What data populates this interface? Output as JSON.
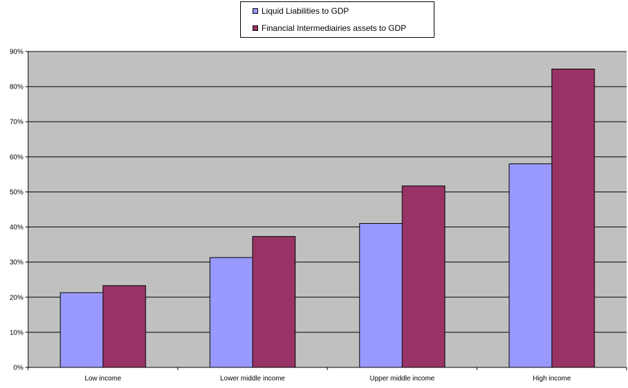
{
  "chart_data": {
    "type": "bar",
    "categories": [
      "Low income",
      "Lower middle income",
      "Upper middle income",
      "High income"
    ],
    "series": [
      {
        "name": "Liquid Liabilities to GDP",
        "color": "#9999ff",
        "values": [
          0.213,
          0.313,
          0.41,
          0.58
        ]
      },
      {
        "name": "Financial Intermediairies assets to GDP",
        "color": "#993366",
        "values": [
          0.233,
          0.373,
          0.517,
          0.85
        ]
      }
    ],
    "ylim": [
      0,
      0.9
    ],
    "yticks": [
      {
        "value": 0,
        "label": "0%"
      },
      {
        "value": 0.1,
        "label": "10%"
      },
      {
        "value": 0.2,
        "label": "20%"
      },
      {
        "value": 0.3,
        "label": "30%"
      },
      {
        "value": 0.4,
        "label": "40%"
      },
      {
        "value": 0.5,
        "label": "50%"
      },
      {
        "value": 0.6,
        "label": "60%"
      },
      {
        "value": 0.7,
        "label": "70%"
      },
      {
        "value": 0.8,
        "label": "80%"
      },
      {
        "value": 0.9,
        "label": "90%"
      }
    ],
    "title": "",
    "xlabel": "",
    "ylabel": "",
    "grid": true,
    "legend_position": "top-center",
    "plot_background": "#c0c0c0"
  }
}
